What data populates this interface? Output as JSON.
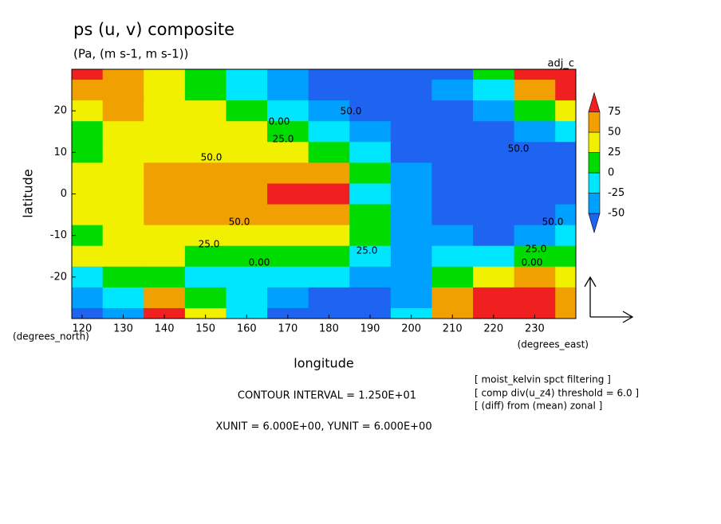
{
  "chart_data": {
    "type": "filled-contour",
    "title": "ps (u, v) composite",
    "subtitle": "(Pa, (m s-1, m s-1))",
    "tag": "adj_c",
    "xlabel": "longitude",
    "ylabel": "latitude",
    "xunit_label": "(degrees_east)",
    "yunit_label": "(degrees_north)",
    "xlim": [
      117.5,
      240
    ],
    "ylim": [
      -30,
      30
    ],
    "xticks": [
      120,
      130,
      140,
      150,
      160,
      170,
      180,
      190,
      200,
      210,
      220,
      230
    ],
    "yticks": [
      -20,
      -10,
      0,
      10,
      20
    ],
    "x": [
      120,
      130,
      140,
      150,
      160,
      170,
      180,
      190,
      200,
      210,
      220,
      230,
      240
    ],
    "y": [
      30,
      25,
      20,
      15,
      10,
      5,
      0,
      -5,
      -10,
      -15,
      -20,
      -25,
      -30
    ],
    "z": [
      [
        80,
        60,
        40,
        10,
        -10,
        -40,
        -60,
        -60,
        -60,
        -60,
        20,
        80,
        80
      ],
      [
        60,
        55,
        35,
        10,
        -20,
        -30,
        -55,
        -55,
        -60,
        -40,
        -10,
        60,
        80
      ],
      [
        40,
        55,
        40,
        30,
        10,
        -15,
        -35,
        -55,
        -60,
        -60,
        -40,
        10,
        30
      ],
      [
        15,
        40,
        40,
        35,
        30,
        10,
        -10,
        -40,
        -55,
        -55,
        -55,
        -35,
        -10
      ],
      [
        10,
        30,
        45,
        45,
        40,
        35,
        10,
        -15,
        -55,
        -55,
        -60,
        -55,
        -55
      ],
      [
        30,
        40,
        55,
        60,
        60,
        65,
        55,
        10,
        -40,
        -55,
        -60,
        -60,
        -60
      ],
      [
        35,
        45,
        55,
        60,
        65,
        80,
        85,
        -10,
        -40,
        -55,
        -60,
        -60,
        -60
      ],
      [
        30,
        45,
        55,
        60,
        65,
        70,
        60,
        10,
        -40,
        -55,
        -60,
        -55,
        -45
      ],
      [
        15,
        35,
        45,
        45,
        45,
        40,
        30,
        5,
        -30,
        -45,
        -55,
        -45,
        -20
      ],
      [
        30,
        35,
        30,
        15,
        10,
        10,
        15,
        -10,
        -30,
        -15,
        -10,
        10,
        15
      ],
      [
        -10,
        10,
        15,
        -5,
        -15,
        -15,
        -10,
        -30,
        -35,
        15,
        40,
        60,
        40
      ],
      [
        -35,
        -10,
        55,
        10,
        -15,
        -40,
        -55,
        -55,
        -45,
        60,
        80,
        80,
        60
      ],
      [
        -55,
        -35,
        80,
        30,
        -20,
        -55,
        -60,
        -55,
        -15,
        60,
        85,
        80,
        60
      ]
    ],
    "levels": [
      -50,
      -25,
      0,
      25,
      50,
      75
    ],
    "colors": [
      "#1e64f0",
      "#00a0ff",
      "#00e6ff",
      "#00dc00",
      "#f0f000",
      "#f0a000",
      "#f02020"
    ],
    "contour_labels": [
      "50.0",
      "0.00",
      "25.0",
      "50.0",
      "50.0",
      "50.0",
      "25.0",
      "0.00",
      "25.0",
      "50.0",
      "25.0",
      "0.00"
    ],
    "contour_interval": "CONTOUR INTERVAL = 1.250E+01",
    "vector_units": "XUNIT = 6.000E+00, YUNIT = 6.000E+00",
    "notes": [
      "[ moist_kelvin spct filtering ]",
      "[ comp div(u_z4) threshold = 6.0 ]",
      "[ (diff) from (mean) zonal ]"
    ]
  }
}
